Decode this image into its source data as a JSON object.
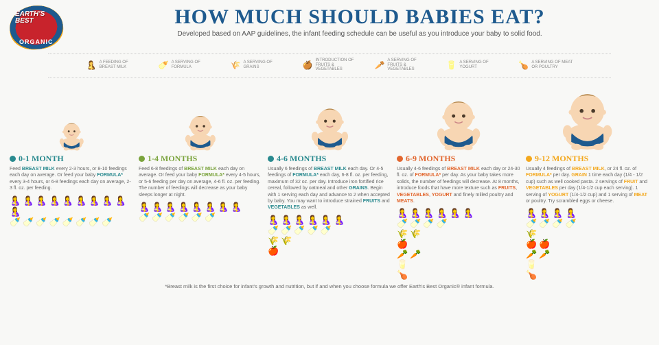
{
  "title": "HOW MUCH SHOULD BABIES EAT?",
  "subtitle": "Developed based on AAP guidelines, the infant feeding schedule can be useful as you introduce your baby to solid food.",
  "brand": {
    "line1": "EARTH'S",
    "line2": "BEST",
    "sub": "ORGANIC"
  },
  "footnote": "*Breast milk is the first choice for infant's growth and nutrition, but if and when you choose formula we offer Earth's Best Organic® infant formula.",
  "legend": [
    {
      "icon": "🤱",
      "color": "#e4a21a",
      "label": "A FEEDING OF BREAST MILK"
    },
    {
      "icon": "🍼",
      "color": "#e4a21a",
      "label": "A SERVING OF FORMULA"
    },
    {
      "icon": "🌾",
      "color": "#e4a21a",
      "label": "A SERVING OF GRAINS"
    },
    {
      "icon": "🍎",
      "color": "#e4a21a",
      "label": "INTRODUCTION OF FRUITS & VEGETABLES"
    },
    {
      "icon": "🥕",
      "color": "#e4a21a",
      "label": "A SERVING OF FRUITS & VEGETABLES"
    },
    {
      "icon": "🥛",
      "color": "#e4a21a",
      "label": "A SERVING OF YOGURT"
    },
    {
      "icon": "🍗",
      "color": "#e4a21a",
      "label": "A SERVING OF MEAT OR POULTRY"
    }
  ],
  "columns": [
    {
      "age": "0-1 MONTH",
      "color": "#2a8a8f",
      "babySize": 46,
      "text": "Feed BREAST MILK every 2-3 hours, or 8-10 feedings each day on average. Or feed your baby FORMULA* every 3-4 hours, or 6-8 feedings each day on average, 2-3 fl. oz. per feeding.",
      "icons": {
        "breast": 10,
        "bottle": 8,
        "grain": 0,
        "fruit": 0,
        "veg": 0,
        "yogurt": 0,
        "meat": 0
      }
    },
    {
      "age": "1-4 MONTHS",
      "color": "#7aa33c",
      "babySize": 58,
      "text": "Feed 6-8 feedings of BREAST MILK each day on average. Or feed your baby FORMULA* every 4-5 hours, or 5-6 feeding per day on average, 4-6 fl. oz. per feeding. The number of feedings will decrease as your baby sleeps longer at night.",
      "icons": {
        "breast": 8,
        "bottle": 6,
        "grain": 0,
        "fruit": 0,
        "veg": 0,
        "yogurt": 0,
        "meat": 0
      }
    },
    {
      "age": "4-6 MONTHS",
      "color": "#2a8a8f",
      "babySize": 70,
      "text": "Usually 6 feedings of BREAST MILK each day. Or 4-5 feedings of FORMULA* each day, 6-8 fl. oz. per feeding, maximum of 32 oz. per day. Introduce iron fortified rice cereal, followed by oatmeal and other GRAINS. Begin with 1 serving each day and advance to 2 when accepted by baby. You may want to introduce strained FRUITS and VEGETABLES as well.",
      "icons": {
        "breast": 6,
        "bottle": 5,
        "grain": 2,
        "fruit": 1,
        "veg": 0,
        "yogurt": 0,
        "meat": 0
      }
    },
    {
      "age": "6-9 MONTHS",
      "color": "#e2672f",
      "babySize": 82,
      "text": "Usually 4-6 feedings of BREAST MILK each day or 24-30 fl. oz. of FORMULA* per day. As your baby takes more solids, the number of feedings will decrease. At 8 months, introduce foods that have more texture such as FRUITS, VEGETABLES, YOGURT and finely milled poultry and MEATS.",
      "icons": {
        "breast": 6,
        "bottle": 4,
        "grain": 2,
        "fruit": 1,
        "veg": 2,
        "yogurt": 1,
        "meat": 1
      }
    },
    {
      "age": "9-12 MONTHS",
      "color": "#f3a81e",
      "babySize": 94,
      "text": "Usually 4 feedings of BREAST MILK, or 24 fl. oz. of FORMULA* per day. GRAIN 1 time each day (1/4 - 1/2 cup) such as well cooked pasta. 2 servings of FRUIT and VEGETABLES per day (1/4-1/2 cup each serving). 1 serving of YOGURT (1/4-1/2 cup) and 1 serving of MEAT or poultry. Try scrambled eggs or cheese.",
      "icons": {
        "breast": 4,
        "bottle": 4,
        "grain": 1,
        "fruit": 2,
        "veg": 2,
        "yogurt": 1,
        "meat": 1
      }
    }
  ],
  "iconMap": {
    "breast": "🤱",
    "bottle": "🍼",
    "grain": "🌾",
    "fruit": "🍎",
    "veg": "🥕",
    "yogurt": "🥛",
    "meat": "🍗"
  },
  "palette": {
    "title": "#1e5a8e",
    "bg": "#f8f8f6",
    "babySkin": "#f7d6b3",
    "babyDiaper": "#1e5a8e"
  }
}
